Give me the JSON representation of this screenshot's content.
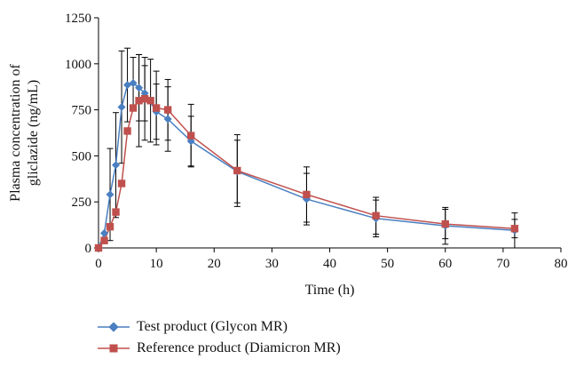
{
  "chart_data": {
    "type": "line",
    "xlabel": "Time (h)",
    "ylabel_lines": [
      "Plasma concentration of",
      "gliclazide (ng/mL)"
    ],
    "xlim": [
      0,
      80
    ],
    "ylim": [
      0,
      1250
    ],
    "xticks": [
      0,
      10,
      20,
      30,
      40,
      50,
      60,
      70,
      80
    ],
    "yticks": [
      0,
      250,
      500,
      750,
      1000,
      1250
    ],
    "grid": false,
    "legend_position": "bottom",
    "series": [
      {
        "name": "Test product (Glycon MR)",
        "color": "#4a7fc1",
        "marker": "diamond",
        "x": [
          0,
          1,
          2,
          3,
          4,
          5,
          6,
          7,
          8,
          10,
          12,
          16,
          24,
          36,
          48,
          60,
          72
        ],
        "y": [
          0,
          80,
          290,
          450,
          765,
          885,
          895,
          870,
          840,
          740,
          700,
          580,
          415,
          265,
          160,
          120,
          95
        ],
        "err": [
          0,
          0,
          250,
          285,
          305,
          200,
          140,
          180,
          150,
          150,
          175,
          135,
          170,
          140,
          100,
          100,
          95
        ]
      },
      {
        "name": "Reference product (Diamicron MR)",
        "color": "#c0504d",
        "marker": "square",
        "x": [
          0,
          1,
          2,
          3,
          4,
          5,
          6,
          7,
          8,
          9,
          10,
          12,
          16,
          24,
          36,
          48,
          60,
          72
        ],
        "y": [
          0,
          40,
          115,
          195,
          350,
          635,
          760,
          800,
          810,
          800,
          760,
          750,
          610,
          420,
          290,
          175,
          130,
          105
        ],
        "err": [
          0,
          0,
          0,
          0,
          0,
          0,
          0,
          250,
          225,
          225,
          200,
          165,
          170,
          195,
          150,
          100,
          80,
          50
        ]
      }
    ]
  }
}
